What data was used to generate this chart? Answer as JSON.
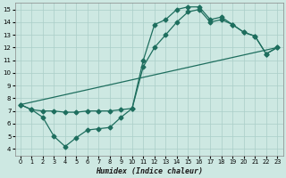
{
  "xlabel": "Humidex (Indice chaleur)",
  "bg_color": "#cde8e2",
  "grid_color": "#aacec8",
  "line_color": "#1e6e5e",
  "xlim": [
    -0.5,
    23.5
  ],
  "ylim": [
    3.5,
    15.5
  ],
  "xticks": [
    0,
    1,
    2,
    3,
    4,
    5,
    6,
    7,
    8,
    9,
    10,
    11,
    12,
    13,
    14,
    15,
    16,
    17,
    18,
    19,
    20,
    21,
    22,
    23
  ],
  "yticks": [
    4,
    5,
    6,
    7,
    8,
    9,
    10,
    11,
    12,
    13,
    14,
    15
  ],
  "curve1_x": [
    0,
    1,
    2,
    3,
    4,
    5,
    6,
    7,
    8,
    9,
    10,
    11,
    12,
    13,
    14,
    15,
    16,
    17,
    18,
    19,
    20,
    21,
    22,
    23
  ],
  "curve1_y": [
    7.5,
    7.1,
    6.5,
    5.0,
    4.2,
    4.9,
    5.5,
    5.6,
    5.7,
    6.5,
    7.2,
    11.0,
    13.8,
    14.2,
    15.0,
    15.2,
    15.2,
    14.2,
    14.4,
    13.8,
    13.2,
    12.9,
    11.5,
    12.0
  ],
  "curve2_x": [
    0,
    1,
    2,
    3,
    4,
    5,
    6,
    7,
    8,
    9,
    10,
    11,
    12,
    13,
    14,
    15,
    16,
    17,
    18,
    19,
    20,
    21,
    22,
    23
  ],
  "curve2_y": [
    7.5,
    7.1,
    7.0,
    7.0,
    6.9,
    6.9,
    7.0,
    7.0,
    7.0,
    7.1,
    7.2,
    10.5,
    12.0,
    13.0,
    14.0,
    14.8,
    15.0,
    14.0,
    14.2,
    13.8,
    13.2,
    12.9,
    11.5,
    12.0
  ],
  "line3_x": [
    0,
    23
  ],
  "line3_y": [
    7.5,
    12.0
  ]
}
